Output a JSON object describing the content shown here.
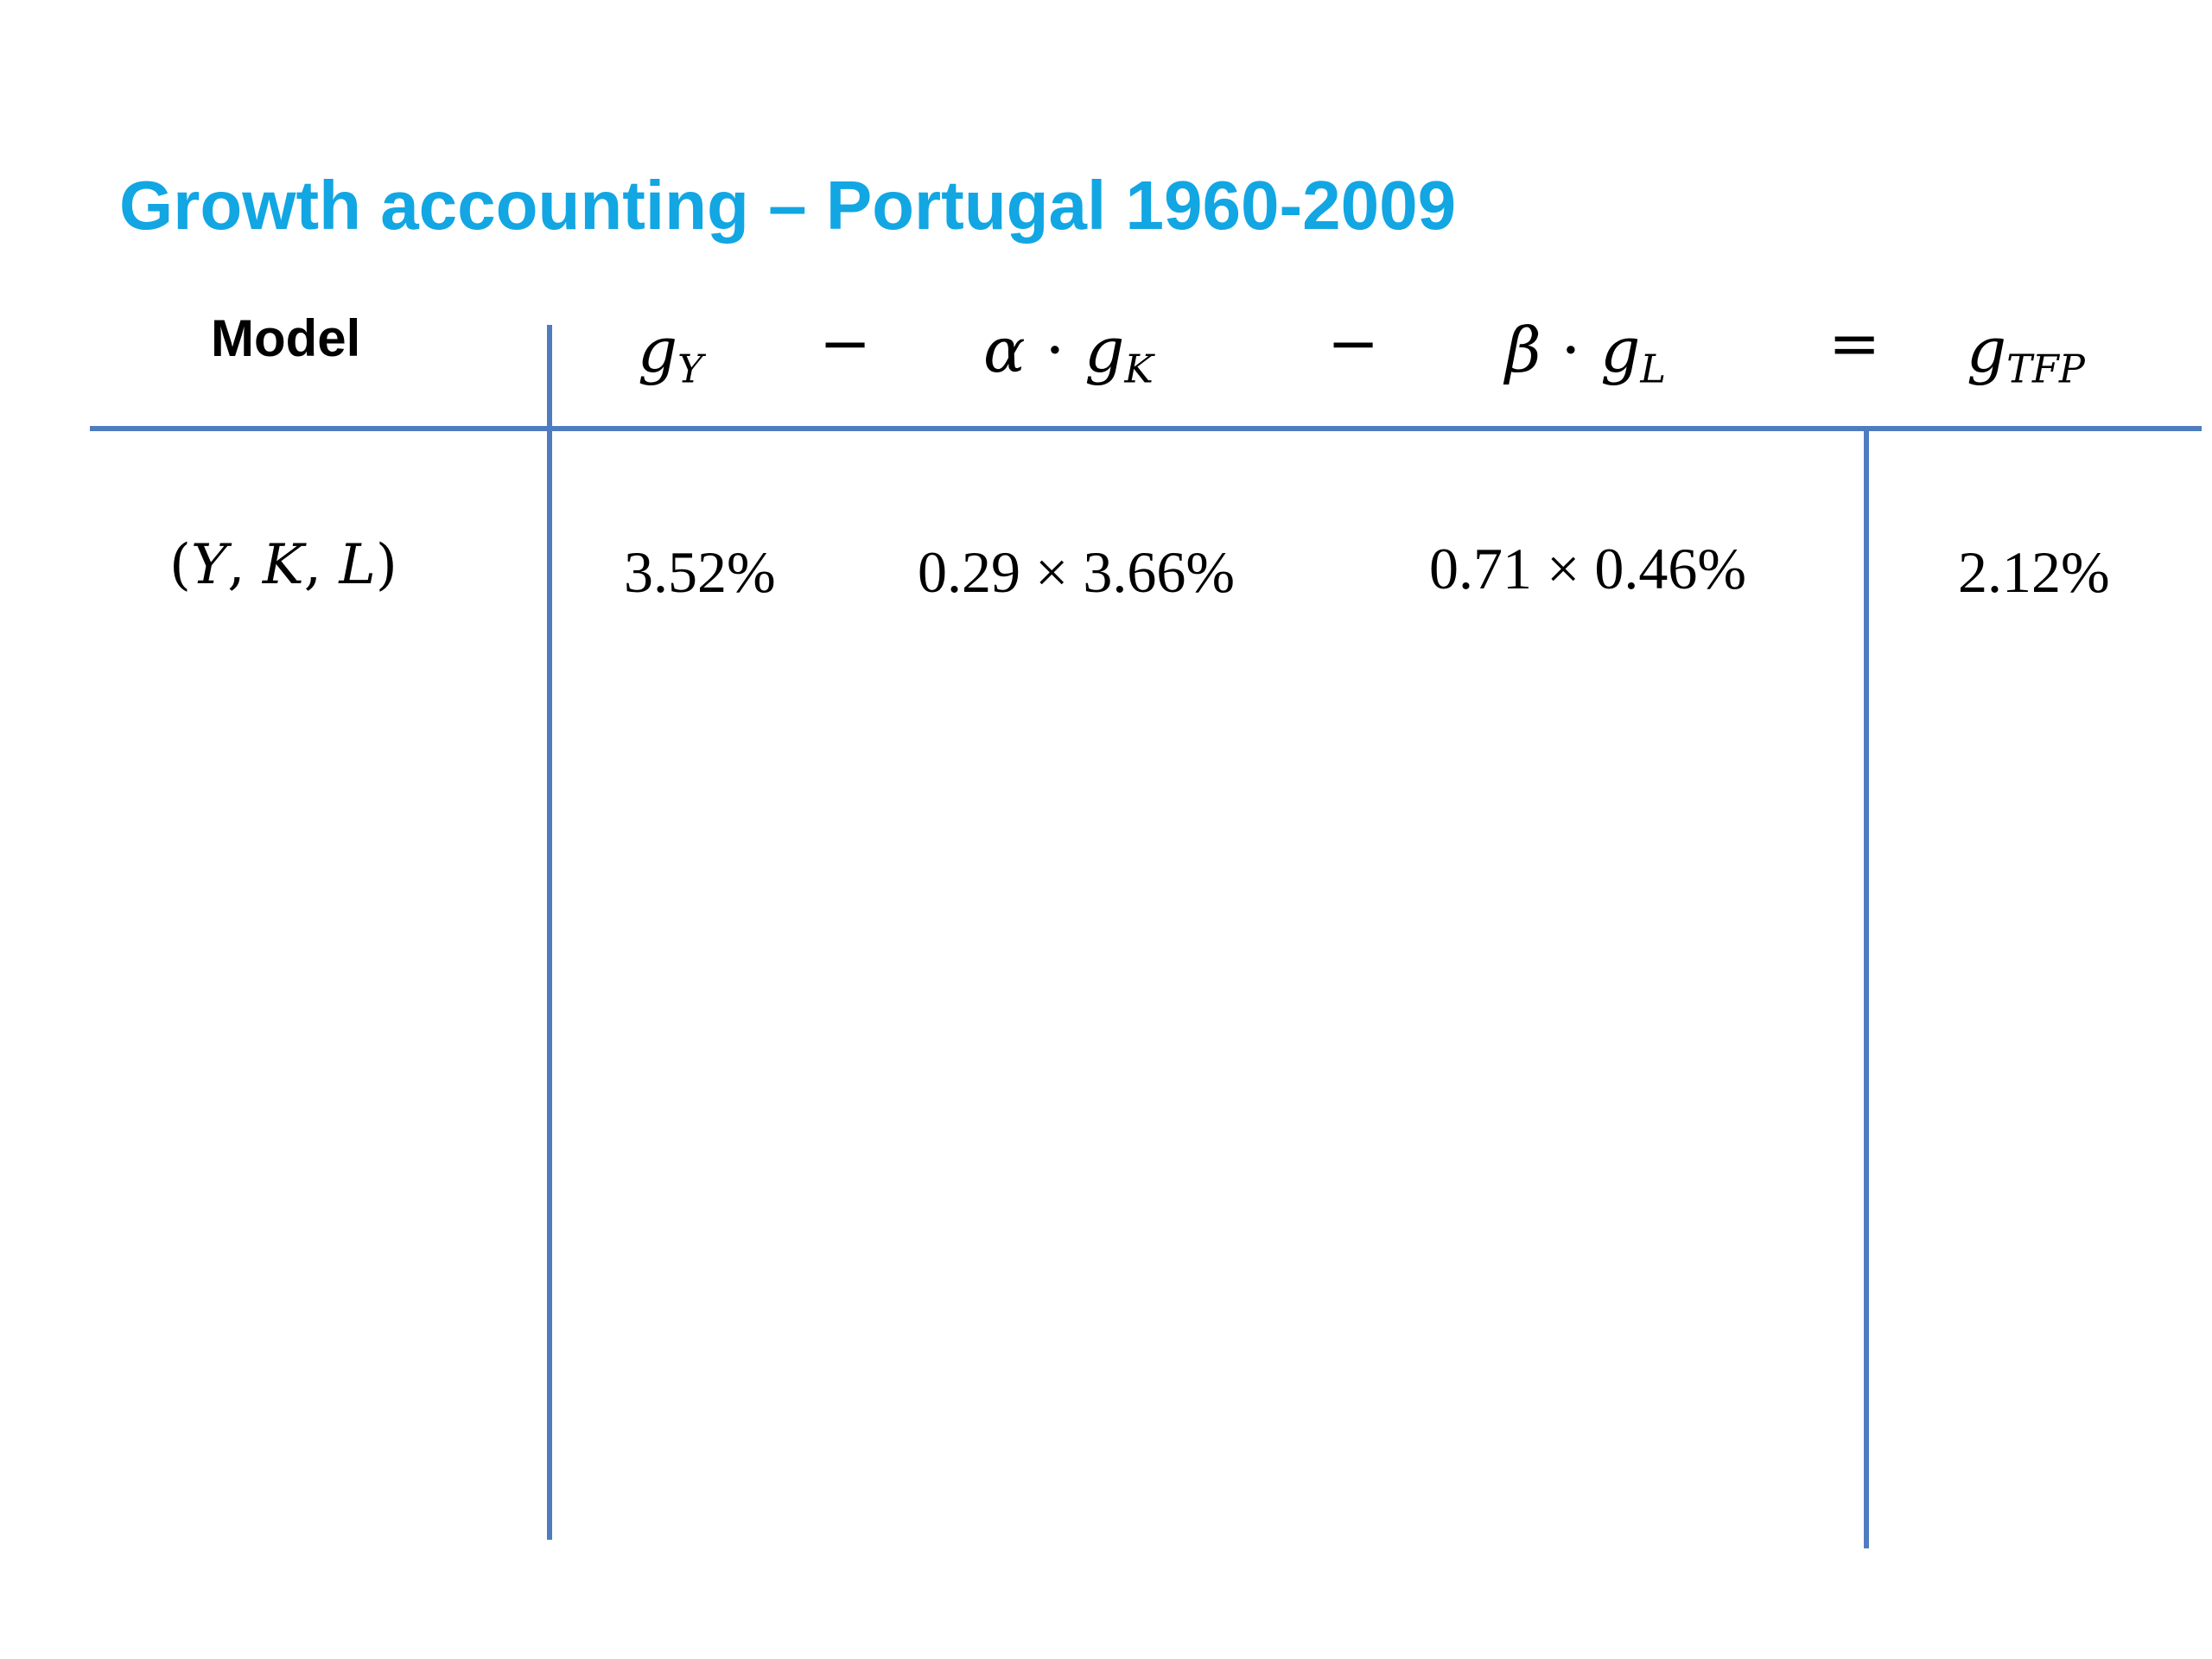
{
  "title": "Growth accounting – Portugal 1960-2009",
  "table": {
    "header": {
      "model": "Model",
      "g": "g",
      "alpha": "α",
      "beta": "β",
      "dot": "·",
      "sub_y": "Y",
      "sub_k": "K",
      "sub_l": "L",
      "sub_tfp": "TFP",
      "op_minus_1": "−",
      "op_minus_2": "−",
      "op_equals": "="
    },
    "row": {
      "model": {
        "open": "(",
        "y": "Y",
        "sep1": ",",
        "k": "K",
        "sep2": ",",
        "l": "L",
        "close": ")"
      },
      "g_y": "3.52%",
      "alpha_g_k": "0.29 × 3.66%",
      "beta_g_l": "0.71 × 0.46%",
      "g_tfp": "2.12%"
    }
  },
  "colors": {
    "title": "#12a6e3",
    "rules": "#4f7cbf",
    "text": "#000000"
  }
}
